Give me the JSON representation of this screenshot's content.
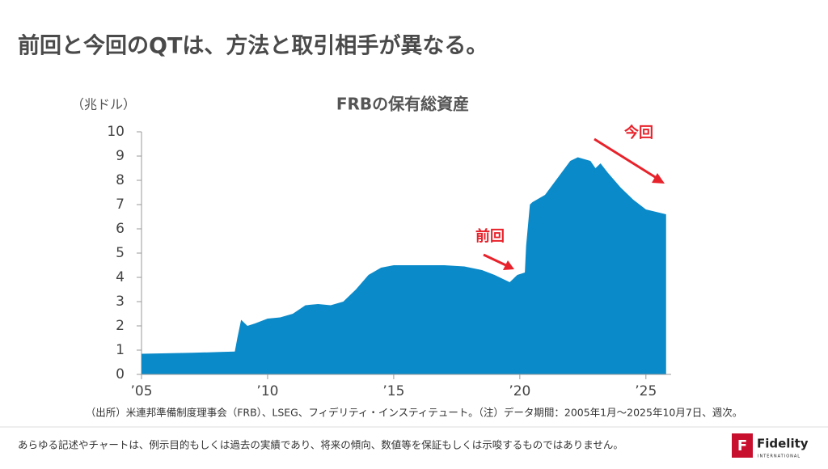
{
  "header": {
    "title": "前回と今回のQTは、方法と取引相手が異なる。"
  },
  "chart_data": {
    "type": "area",
    "title": "FRBの保有総資産",
    "y_label": "（兆ドル）",
    "x": [
      2005.0,
      2006.0,
      2007.0,
      2008.0,
      2008.7,
      2008.8,
      2008.95,
      2009.2,
      2009.5,
      2010.0,
      2010.5,
      2011.0,
      2011.5,
      2012.0,
      2012.5,
      2013.0,
      2013.5,
      2014.0,
      2014.5,
      2015.0,
      2016.0,
      2017.0,
      2017.8,
      2018.5,
      2019.0,
      2019.6,
      2019.9,
      2020.2,
      2020.25,
      2020.4,
      2020.5,
      2021.0,
      2021.5,
      2022.0,
      2022.3,
      2022.8,
      2023.0,
      2023.2,
      2023.5,
      2024.0,
      2024.5,
      2025.0,
      2025.8
    ],
    "series": [
      {
        "color": "#0a8ac9",
        "values": [
          0.85,
          0.87,
          0.89,
          0.92,
          0.94,
          1.5,
          2.25,
          2.0,
          2.1,
          2.3,
          2.35,
          2.5,
          2.85,
          2.9,
          2.85,
          3.0,
          3.5,
          4.1,
          4.4,
          4.5,
          4.5,
          4.5,
          4.45,
          4.3,
          4.1,
          3.8,
          4.1,
          4.2,
          5.3,
          7.0,
          7.1,
          7.4,
          8.1,
          8.8,
          8.95,
          8.8,
          8.5,
          8.7,
          8.3,
          7.7,
          7.2,
          6.8,
          6.6
        ]
      }
    ],
    "xlim": [
      2005,
      2026
    ],
    "ylim": [
      0,
      10
    ],
    "xticks": [
      {
        "value": 2005,
        "label": "’05"
      },
      {
        "value": 2010,
        "label": "’10"
      },
      {
        "value": 2015,
        "label": "’15"
      },
      {
        "value": 2020,
        "label": "’20"
      },
      {
        "value": 2025,
        "label": "’25"
      }
    ],
    "yticks": [
      0,
      1,
      2,
      3,
      4,
      5,
      6,
      7,
      8,
      9,
      10
    ],
    "annotations": [
      "前回",
      "今回"
    ]
  },
  "source": "（出所）米連邦準備制度理事会（FRB）、LSEG、フィデリティ・インスティテュート。（注）データ期間：2005年1月～2025年10月7日、週次。",
  "footer": {
    "disclaimer": "あらゆる記述やチャートは、例示目的もしくは過去の実績であり、将来の傾向、数値等を保証もしくは示唆するものではありません。",
    "logo": "Fidelity",
    "logo_sub": "INTERNATIONAL"
  }
}
